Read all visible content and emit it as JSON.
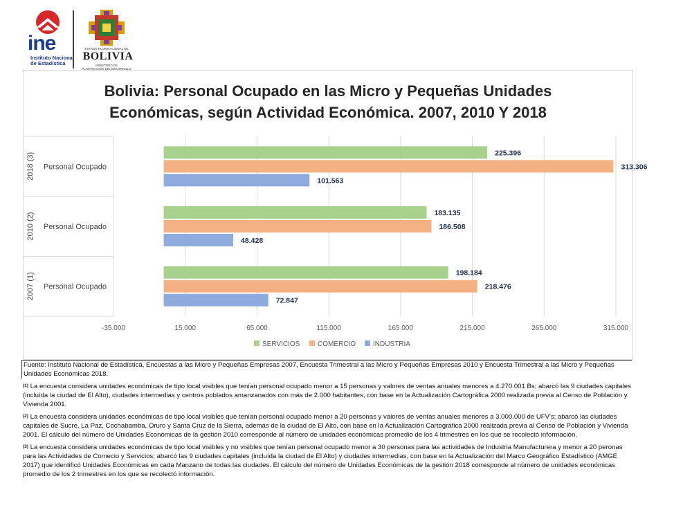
{
  "logos": {
    "ine": {
      "word": "ine",
      "subtitle_1": "Instituto Nacional",
      "subtitle_2": "de Estadística"
    },
    "bolivia": {
      "top_text": "ESTADO PLURINACIONAL DE",
      "word": "BOLIVIA",
      "sub_1": "MINISTERIO DE",
      "sub_2": "PLANIFICACIÓN DEL DESARROLLO"
    }
  },
  "colors": {
    "servicios": "#a9d18e",
    "comercio": "#f4b183",
    "industria": "#8faadc"
  },
  "chart_data": {
    "type": "bar",
    "orientation": "horizontal",
    "title_line1": "Bolivia: Personal Ocupado en las Micro y Pequeñas Unidades",
    "title_line2": "Económicas, según Actividad Económica. 2007, 2010 Y 2018",
    "categories": [
      {
        "group": "2018 (3)",
        "label": "Personal Ocupado"
      },
      {
        "group": "2010 (2)",
        "label": "Personal Ocupado"
      },
      {
        "group": "2007 (1)",
        "label": "Personal Ocupado"
      }
    ],
    "series": [
      {
        "name": "SERVICIOS",
        "values": [
          225396,
          183135,
          198184
        ],
        "labels": [
          "225.396",
          "183.135",
          "198.184"
        ]
      },
      {
        "name": "COMERCIO",
        "values": [
          313306,
          186508,
          218476
        ],
        "labels": [
          "313.306",
          "186.508",
          "218.476"
        ]
      },
      {
        "name": "INDUSTRIA",
        "values": [
          101563,
          48428,
          72847
        ],
        "labels": [
          "101.563",
          "48.428",
          "72.847"
        ]
      }
    ],
    "xlim": [
      -35000,
      315000
    ],
    "x_ticks": [
      -35000,
      15000,
      65000,
      115000,
      165000,
      215000,
      265000,
      315000
    ],
    "x_tick_labels": [
      "-35.000",
      "15.000",
      "65.000",
      "115.000",
      "165.000",
      "215.000",
      "265.000",
      "315.000"
    ],
    "gridlines": true,
    "legend_position": "bottom"
  },
  "footer": {
    "source": "Fuente: Instituto Nacional de Estadística, Encuestas a las Micro y Pequeñas Empresas 2007, Encuesta Trimestral a las Micro y Pequeñas Empresas 2010 y Encuesta Trimestral a las Micro y Pequeñas Unidades Económicas 2018.",
    "note1_mark": "(1)",
    "note1": " La encuesta considera unidades económicas de tipo local visibles que tenían personal ocupado menor a 15 personas y valores de ventas anuales menores a 4.270.001 Bs; abarcó las 9 ciudades capitales (incluída la ciudad de El Alto), ciudades intermedias y centros poblados amanzanados con más de 2.000 habitantes, con base en la Actualización Cartográfica 2000 realizada previa al Censo de Población y Vivienda 2001.",
    "note2_mark": "(2)",
    "note2": " La encuesta considera unidades económicas de tipo local visibles que tenían personal ocupado menor a 20 personas y valores de ventas anuales menores a 3.000.000 de UFV's; abarcó las ciudades capitales de Sucre, La Paz, Cochabamba, Oruro y Santa Cruz de la Sierra, además de la ciudad de El Alto, con base en la Actualización Cartográfica 2000 realizada previa al Censo de Población y Vivienda 2001. El cálculo del número de Unidades Económicas de la gestión 2010 corresponde al número de unidades económicas promedio de los 4 trimestres en los que se recolectó información.",
    "note3_mark": "(3)",
    "note3": " La encuesta considera unidades económicas de tipo local visibles y no visibles que tenían personal ocupado menor a 30 personas para las actividades de Industria Manufacturera y menor a 20 peronas para las Actividades de Comecio y Servicios; abarcó las 9 ciudades capitales (incluída la ciudad de El Alto) y ciudades intermedias, con base en la Actualización del Marco Geográfico Estadístico (AMGE 2017) que identificó Unidades Económicas en cada Manzano de todas las ciudades. El cálculo del número de Unidades Económicas de la gestión 2018 corresponde al número de unidades económicas promedio de los 2 trimestres en los que se recolectó información."
  }
}
